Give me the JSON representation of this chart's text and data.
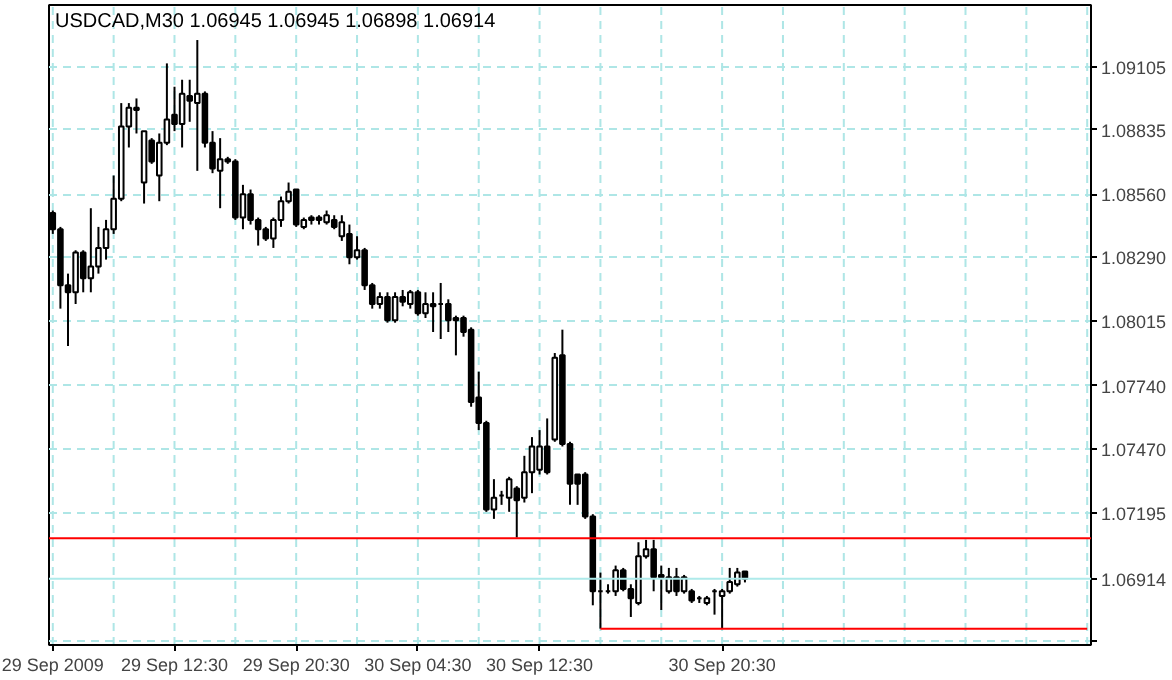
{
  "chart_data": {
    "type": "candlestick",
    "title": "USDCAD,M30  1.06945 1.06945 1.06898 1.06914",
    "categories": [
      "29 Sep 2009",
      null,
      null,
      null,
      null,
      null,
      null,
      null,
      null,
      null,
      null,
      null,
      null,
      null,
      null,
      null,
      "29 Sep 12:30",
      null,
      null,
      null,
      null,
      null,
      null,
      null,
      null,
      null,
      null,
      null,
      null,
      null,
      null,
      null,
      "29 Sep 20:30",
      null,
      null,
      null,
      null,
      null,
      null,
      null,
      null,
      null,
      null,
      null,
      null,
      null,
      null,
      null,
      "30 Sep 04:30",
      null,
      null,
      null,
      null,
      null,
      null,
      null,
      null,
      null,
      null,
      null,
      null,
      null,
      null,
      null,
      "30 Sep 12:30",
      null,
      null,
      null,
      null,
      null,
      null,
      null,
      null,
      null,
      null,
      null,
      null,
      null,
      null,
      null,
      null,
      null,
      null,
      null,
      null,
      null,
      null,
      null,
      "30 Sep 20:30",
      null,
      null,
      null,
      null,
      null,
      null,
      null,
      null,
      null,
      null,
      null,
      null,
      null,
      null,
      null,
      null,
      null,
      null,
      null,
      null,
      null,
      null,
      null,
      null,
      null,
      null,
      null,
      null,
      null,
      null,
      null,
      null,
      null,
      null,
      null,
      null,
      null,
      null,
      null,
      null,
      null,
      null,
      null,
      null,
      null,
      null,
      null,
      null
    ],
    "ylim": [
      1.0663,
      1.0937
    ],
    "yticks": [
      {
        "value": 1.09105,
        "label": "1.09105"
      },
      {
        "value": 1.08835,
        "label": "1.08835"
      },
      {
        "value": 1.0856,
        "label": "1.08560"
      },
      {
        "value": 1.0829,
        "label": "1.08290"
      },
      {
        "value": 1.08015,
        "label": "1.08015"
      },
      {
        "value": 1.0774,
        "label": "1.07740"
      },
      {
        "value": 1.0747,
        "label": "1.07470"
      },
      {
        "value": 1.07195,
        "label": "1.07195"
      },
      {
        "value": 1.06645,
        "label": null
      }
    ],
    "grid": true,
    "ref_lines": [
      {
        "axis": "y",
        "value": 1.07087,
        "label": null,
        "color": "#ff0000"
      },
      {
        "axis": "y",
        "value": 1.06914,
        "label": "1.06914",
        "color": "#aeeaea"
      }
    ],
    "series": [
      {
        "color": "#000000",
        "ohlc": [
          [
            1.0848,
            1.0849,
            1.0839,
            1.0841
          ],
          [
            1.0841,
            1.0842,
            1.0807,
            1.0817
          ],
          [
            1.0817,
            1.0822,
            1.0791,
            1.0814
          ],
          [
            1.0814,
            1.0832,
            1.0809,
            1.0831
          ],
          [
            1.0831,
            1.0832,
            1.0814,
            1.082
          ],
          [
            1.082,
            1.085,
            1.0814,
            1.0825
          ],
          [
            1.0825,
            1.0842,
            1.0822,
            1.0833
          ],
          [
            1.0833,
            1.0845,
            1.0828,
            1.0841
          ],
          [
            1.0841,
            1.0864,
            1.0839,
            1.0854
          ],
          [
            1.0854,
            1.0895,
            1.0853,
            1.0885
          ],
          [
            1.0885,
            1.0895,
            1.0876,
            1.0893
          ],
          [
            1.0893,
            1.0897,
            1.0882,
            1.0892
          ],
          [
            1.0861,
            1.0883,
            1.0852,
            1.0883
          ],
          [
            1.0879,
            1.088,
            1.0869,
            1.087
          ],
          [
            1.0864,
            1.0882,
            1.0853,
            1.0878
          ],
          [
            1.0878,
            1.0912,
            1.0877,
            1.0888
          ],
          [
            1.089,
            1.0902,
            1.0883,
            1.0886
          ],
          [
            1.0886,
            1.0905,
            1.0876,
            1.0899
          ],
          [
            1.0898,
            1.0905,
            1.0887,
            1.0896
          ],
          [
            1.0895,
            1.0922,
            1.0866,
            1.0899
          ],
          [
            1.0899,
            1.09,
            1.0876,
            1.0878
          ],
          [
            1.0878,
            1.0883,
            1.0865,
            1.0867
          ],
          [
            1.0866,
            1.088,
            1.085,
            1.0871
          ],
          [
            1.0871,
            1.0872,
            1.0869,
            1.087
          ],
          [
            1.087,
            1.0871,
            1.0845,
            1.0846
          ],
          [
            1.0846,
            1.086,
            1.0841,
            1.0856
          ],
          [
            1.0856,
            1.0858,
            1.0843,
            1.0845
          ],
          [
            1.0845,
            1.0846,
            1.0834,
            1.0841
          ],
          [
            1.0841,
            1.0842,
            1.0836,
            1.0837
          ],
          [
            1.0837,
            1.0846,
            1.0833,
            1.0845
          ],
          [
            1.0845,
            1.0855,
            1.0842,
            1.0853
          ],
          [
            1.0853,
            1.0861,
            1.0852,
            1.0857
          ],
          [
            1.0858,
            1.0858,
            1.0842,
            1.0843
          ],
          [
            1.0842,
            1.0846,
            1.0841,
            1.0845
          ],
          [
            1.0846,
            1.0847,
            1.0843,
            1.0845
          ],
          [
            1.0846,
            1.0847,
            1.0843,
            1.0845
          ],
          [
            1.0844,
            1.0849,
            1.0843,
            1.0847
          ],
          [
            1.0845,
            1.0847,
            1.0841,
            1.0842
          ],
          [
            1.0838,
            1.0847,
            1.0836,
            1.0844
          ],
          [
            1.0839,
            1.0843,
            1.0826,
            1.0829
          ],
          [
            1.0829,
            1.0838,
            1.0828,
            1.0832
          ],
          [
            1.0832,
            1.0833,
            1.0815,
            1.0817
          ],
          [
            1.0817,
            1.0818,
            1.0807,
            1.0809
          ],
          [
            1.0809,
            1.0814,
            1.0807,
            1.0812
          ],
          [
            1.0812,
            1.0814,
            1.0801,
            1.0802
          ],
          [
            1.0802,
            1.0814,
            1.0801,
            1.0812
          ],
          [
            1.0812,
            1.0815,
            1.0808,
            1.081
          ],
          [
            1.0809,
            1.0815,
            1.0807,
            1.0814
          ],
          [
            1.0814,
            1.0815,
            1.0804,
            1.0805
          ],
          [
            1.0805,
            1.0814,
            1.0803,
            1.0809
          ],
          [
            1.0809,
            1.0814,
            1.0797,
            1.0808
          ],
          [
            1.0809,
            1.0818,
            1.0794,
            1.0809
          ],
          [
            1.0809,
            1.0811,
            1.0797,
            1.0802
          ],
          [
            1.0803,
            1.0804,
            1.0787,
            1.0802
          ],
          [
            1.0803,
            1.0804,
            1.0795,
            1.0797
          ],
          [
            1.0798,
            1.0799,
            1.0765,
            1.0767
          ],
          [
            1.0769,
            1.078,
            1.0755,
            1.0758
          ],
          [
            1.0758,
            1.0759,
            1.072,
            1.0721
          ],
          [
            1.0721,
            1.0734,
            1.0717,
            1.0726
          ],
          [
            1.0727,
            1.0729,
            1.0723,
            1.0727
          ],
          [
            1.0726,
            1.0735,
            1.072,
            1.0734
          ],
          [
            1.073,
            1.0731,
            1.0709,
            1.0725
          ],
          [
            1.0726,
            1.0744,
            1.0724,
            1.0737
          ],
          [
            1.0737,
            1.0752,
            1.0728,
            1.0748
          ],
          [
            1.0738,
            1.0755,
            1.0736,
            1.0748
          ],
          [
            1.0748,
            1.076,
            1.0736,
            1.0737
          ],
          [
            1.0751,
            1.0788,
            1.075,
            1.0786
          ],
          [
            1.0787,
            1.0798,
            1.0748,
            1.0749
          ],
          [
            1.0749,
            1.075,
            1.0723,
            1.0732
          ],
          [
            1.0736,
            1.0736,
            1.0723,
            1.0732
          ],
          [
            1.0736,
            1.0737,
            1.0717,
            1.0718
          ],
          [
            1.0718,
            1.0719,
            1.068,
            1.0686
          ],
          [
            1.0686,
            1.0694,
            1.067,
            1.0686
          ],
          [
            1.0686,
            1.0689,
            1.0685,
            1.0686
          ],
          [
            1.0686,
            1.0697,
            1.0684,
            1.0695
          ],
          [
            1.0695,
            1.0696,
            1.0686,
            1.0687
          ],
          [
            1.0687,
            1.0689,
            1.0675,
            1.0683
          ],
          [
            1.0681,
            1.0707,
            1.068,
            1.0701
          ],
          [
            1.0701,
            1.0708,
            1.07,
            1.0704
          ],
          [
            1.0704,
            1.0708,
            1.0686,
            1.0692
          ],
          [
            1.0693,
            1.0697,
            1.0678,
            1.0692
          ],
          [
            1.0686,
            1.0696,
            1.0685,
            1.0692
          ],
          [
            1.0692,
            1.0696,
            1.0684,
            1.0686
          ],
          [
            1.0686,
            1.0693,
            1.0685,
            1.0692
          ],
          [
            1.0686,
            1.0687,
            1.0681,
            1.0682
          ],
          [
            1.0683,
            1.0684,
            1.0681,
            1.0683
          ],
          [
            1.0681,
            1.0684,
            1.068,
            1.0683
          ],
          [
            1.0686,
            1.0687,
            1.0676,
            1.0686
          ],
          [
            1.0684,
            1.0687,
            1.067,
            1.0686
          ],
          [
            1.0686,
            1.0696,
            1.0685,
            1.069
          ],
          [
            1.0689,
            1.0696,
            1.0688,
            1.0694
          ],
          [
            1.06945,
            1.06945,
            1.06898,
            1.06914
          ],
          null,
          null,
          null,
          null,
          null,
          null,
          null,
          null,
          null,
          null,
          null,
          null,
          null,
          null,
          null,
          null,
          null,
          null,
          null,
          null,
          null,
          null,
          null,
          null,
          null,
          null,
          null,
          null,
          null,
          null,
          null,
          null,
          null,
          null,
          null,
          null,
          null,
          null,
          null,
          null,
          null,
          null,
          null,
          null,
          null
        ]
      },
      {
        "type": "line",
        "color": "#ff0000",
        "values": [
          null,
          null,
          null,
          null,
          null,
          null,
          null,
          null,
          null,
          null,
          null,
          null,
          null,
          null,
          null,
          null,
          null,
          null,
          null,
          null,
          null,
          null,
          null,
          null,
          null,
          null,
          null,
          null,
          null,
          null,
          null,
          null,
          null,
          null,
          null,
          null,
          null,
          null,
          null,
          null,
          null,
          null,
          null,
          null,
          null,
          null,
          null,
          null,
          null,
          null,
          null,
          null,
          null,
          null,
          null,
          null,
          null,
          null,
          null,
          null,
          null,
          null,
          null,
          null,
          null,
          null,
          null,
          null,
          null,
          null,
          null,
          null,
          1.067,
          1.067,
          1.067,
          1.067,
          1.067,
          1.067,
          1.067,
          1.067,
          1.067,
          1.067,
          1.067,
          1.067,
          1.067,
          1.067,
          1.067,
          1.067,
          1.067,
          1.067,
          1.067,
          1.067,
          1.067,
          1.067,
          1.067,
          1.067,
          1.067,
          1.067,
          1.067,
          1.067,
          1.067,
          1.067,
          1.067,
          1.067,
          1.067,
          1.067,
          1.067,
          1.067,
          1.067,
          1.067,
          1.067,
          1.067,
          1.067,
          1.067,
          1.067,
          1.067,
          1.067,
          1.067,
          1.067,
          1.067,
          1.067,
          1.067,
          1.067,
          1.067,
          1.067,
          1.067,
          1.067,
          1.067,
          1.067,
          1.067,
          1.067,
          1.067,
          1.067,
          1.067,
          1.067,
          1.067,
          1.067
        ]
      }
    ]
  }
}
